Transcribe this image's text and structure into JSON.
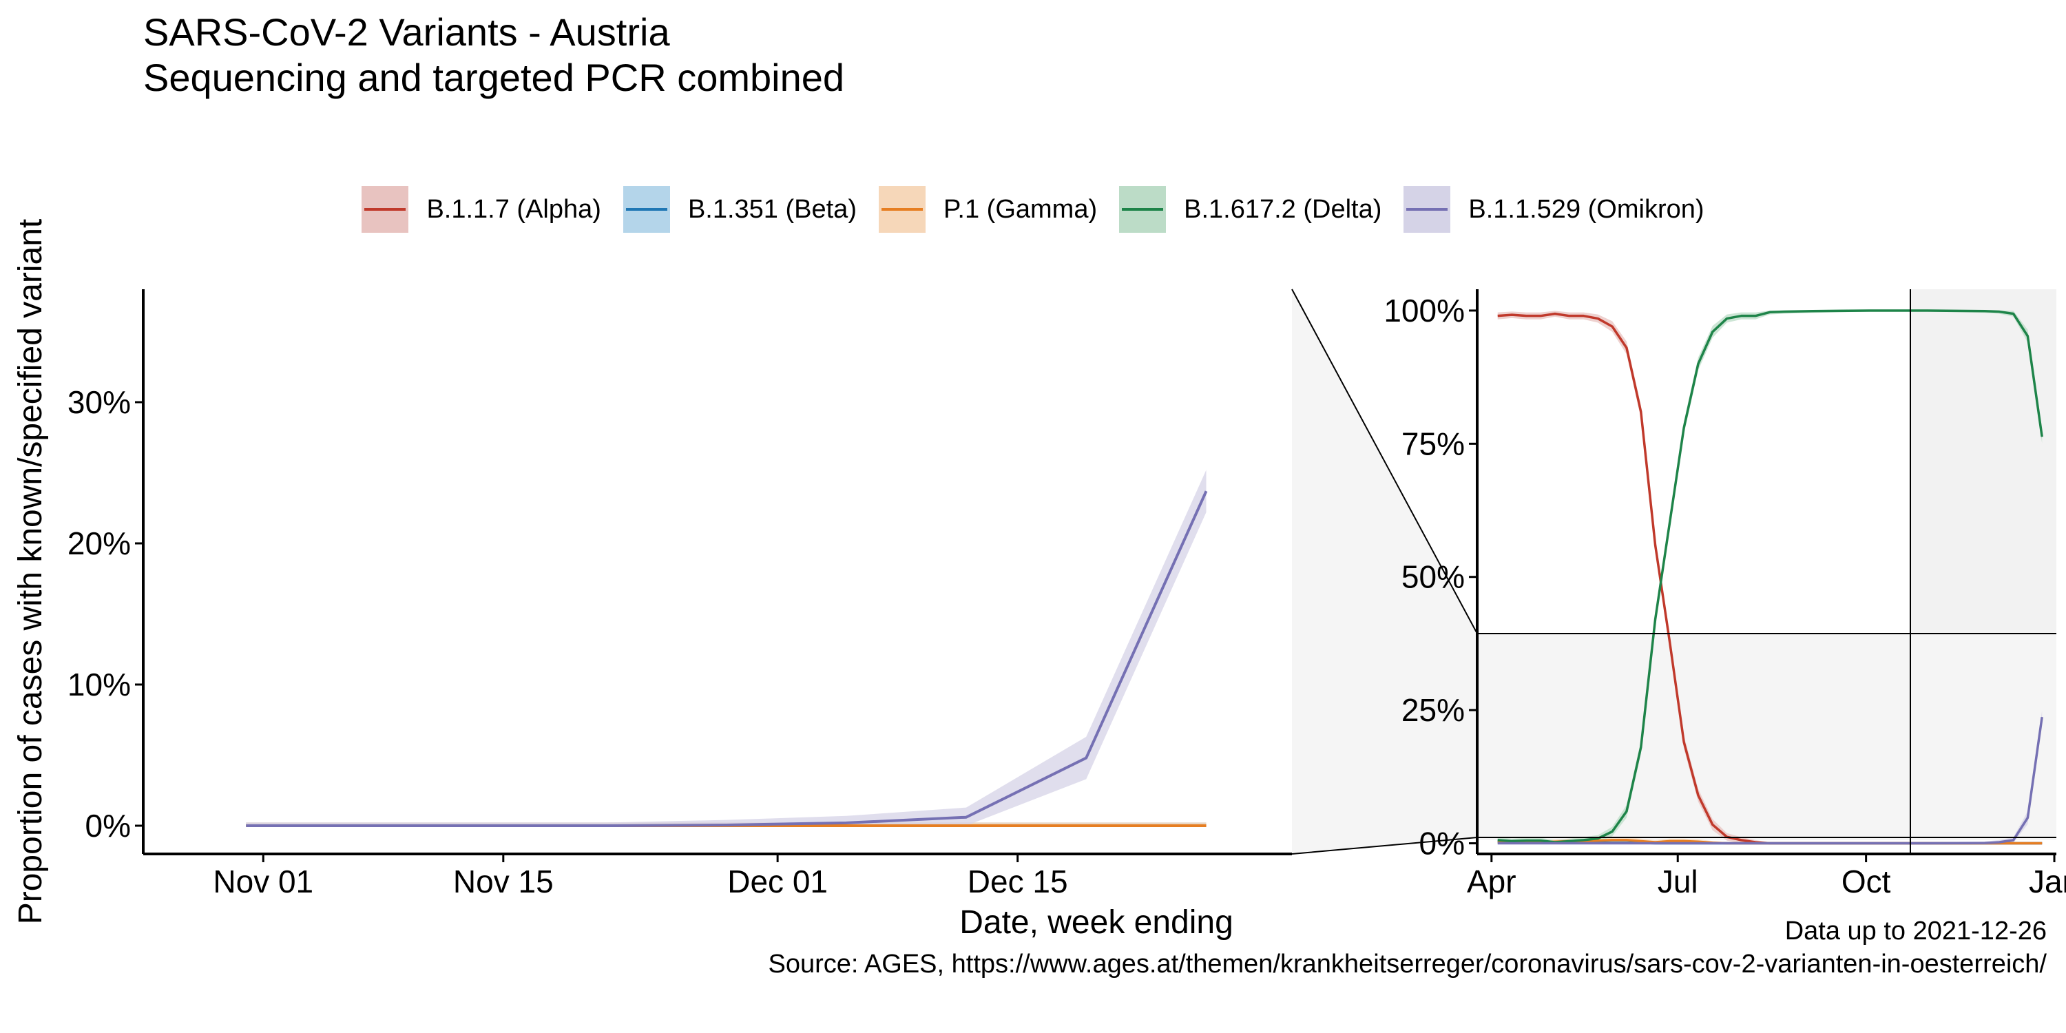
{
  "title": "SARS-CoV-2 Variants - Austria",
  "subtitle": "Sequencing and targeted PCR combined",
  "caption_line1": "Data up to 2021-12-26",
  "caption_line2": "Source: AGES, https://www.ages.at/themen/krankheitserreger/coronavirus/sars-cov-2-varianten-in-oesterreich/",
  "legend": [
    {
      "label": "B.1.1.7 (Alpha)",
      "color": "#c0392b",
      "fill": "#e8c3c0"
    },
    {
      "label": "B.1.351 (Beta)",
      "color": "#1f77b4",
      "fill": "#b4d5ea"
    },
    {
      "label": "P.1 (Gamma)",
      "color": "#e67e22",
      "fill": "#f6d7b9"
    },
    {
      "label": "B.1.617.2 (Delta)",
      "color": "#1e8449",
      "fill": "#bcdcc7"
    },
    {
      "label": "B.1.1.529 (Omikron)",
      "color": "#7570b3",
      "fill": "#d5d3e7"
    }
  ],
  "chart_data": [
    {
      "type": "line",
      "panel": "main",
      "xlabel": "Date, week ending",
      "ylabel": "Proportion of cases with known/specified variant",
      "x_ticks": [
        "Nov 01",
        "Nov 15",
        "Dec 01",
        "Dec 15"
      ],
      "y_ticks": [
        "0%",
        "10%",
        "20%",
        "30%"
      ],
      "x": [
        "2021-10-31",
        "2021-11-07",
        "2021-11-14",
        "2021-11-21",
        "2021-11-28",
        "2021-12-05",
        "2021-12-12",
        "2021-12-19",
        "2021-12-26"
      ],
      "ylim": [
        -0.02,
        0.38
      ],
      "series": [
        {
          "name": "B.1.1.7 (Alpha)",
          "values": [
            0,
            0,
            0,
            0,
            0,
            0,
            0,
            0,
            0
          ]
        },
        {
          "name": "B.1.351 (Beta)",
          "values": [
            0,
            0,
            0,
            0,
            0,
            0,
            0,
            0,
            0
          ]
        },
        {
          "name": "P.1 (Gamma)",
          "values": [
            0,
            0,
            0,
            0,
            0,
            0,
            0,
            0,
            0
          ]
        },
        {
          "name": "B.1.617.2 (Delta)",
          "values": [
            1.0,
            1.0,
            1.0,
            1.0,
            0.999,
            0.998,
            0.994,
            0.952,
            0.763
          ]
        },
        {
          "name": "B.1.1.529 (Omikron)",
          "values": [
            0,
            0,
            0,
            0,
            0.0005,
            0.002,
            0.006,
            0.048,
            0.237
          ]
        }
      ]
    },
    {
      "type": "line",
      "panel": "inset",
      "x_ticks": [
        "Apr",
        "Jul",
        "Oct",
        "Jan"
      ],
      "y_ticks": [
        "0%",
        "25%",
        "50%",
        "75%",
        "100%"
      ],
      "x": [
        "2021-04-04",
        "2021-04-11",
        "2021-04-18",
        "2021-04-25",
        "2021-05-02",
        "2021-05-09",
        "2021-05-16",
        "2021-05-23",
        "2021-05-30",
        "2021-06-06",
        "2021-06-13",
        "2021-06-20",
        "2021-06-27",
        "2021-07-04",
        "2021-07-11",
        "2021-07-18",
        "2021-07-25",
        "2021-08-01",
        "2021-08-08",
        "2021-08-15",
        "2021-08-22",
        "2021-09-05",
        "2021-10-03",
        "2021-10-31",
        "2021-11-28",
        "2021-12-05",
        "2021-12-12",
        "2021-12-19",
        "2021-12-26"
      ],
      "ylim": [
        -0.02,
        1.04
      ],
      "series": [
        {
          "name": "B.1.1.7 (Alpha)",
          "values": [
            0.99,
            0.992,
            0.99,
            0.99,
            0.994,
            0.99,
            0.99,
            0.985,
            0.97,
            0.93,
            0.81,
            0.56,
            0.38,
            0.19,
            0.09,
            0.035,
            0.012,
            0.006,
            0.002,
            0,
            0,
            0,
            0,
            0,
            0,
            0,
            0,
            0,
            0
          ]
        },
        {
          "name": "B.1.351 (Beta)",
          "values": [
            0.004,
            0.003,
            0.003,
            0.002,
            0.002,
            0.002,
            0.001,
            0.001,
            0.001,
            0.001,
            0.001,
            0,
            0,
            0,
            0,
            0,
            0,
            0,
            0,
            0,
            0,
            0,
            0,
            0,
            0,
            0,
            0,
            0,
            0
          ]
        },
        {
          "name": "P.1 (Gamma)",
          "values": [
            0.002,
            0.002,
            0.003,
            0.002,
            0.003,
            0.004,
            0.004,
            0.005,
            0.006,
            0.006,
            0.004,
            0.002,
            0.004,
            0.004,
            0.003,
            0.001,
            0,
            0,
            0,
            0,
            0,
            0,
            0,
            0,
            0,
            0,
            0,
            0,
            0
          ]
        },
        {
          "name": "B.1.617.2 (Delta)",
          "values": [
            0.006,
            0.004,
            0.005,
            0.005,
            0.002,
            0.004,
            0.006,
            0.009,
            0.022,
            0.06,
            0.18,
            0.42,
            0.6,
            0.78,
            0.9,
            0.96,
            0.985,
            0.99,
            0.99,
            0.997,
            0.998,
            0.999,
            1.0,
            1.0,
            0.999,
            0.998,
            0.994,
            0.952,
            0.763
          ]
        },
        {
          "name": "B.1.1.529 (Omikron)",
          "values": [
            0,
            0,
            0,
            0,
            0,
            0,
            0,
            0,
            0,
            0,
            0,
            0,
            0,
            0,
            0,
            0,
            0,
            0,
            0,
            0,
            0,
            0,
            0,
            0,
            0.0005,
            0.002,
            0.006,
            0.048,
            0.237
          ]
        }
      ]
    }
  ]
}
